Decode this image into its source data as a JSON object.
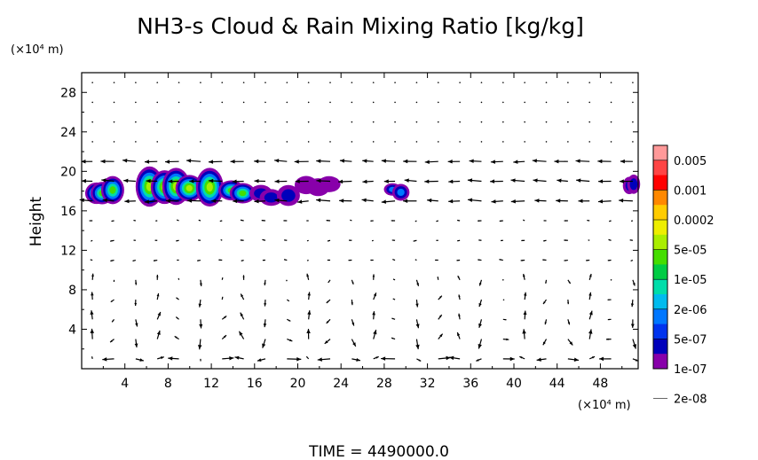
{
  "chart_data": {
    "type": "heatmap",
    "title": "NH3-s Cloud & Rain Mixing Ratio [kg/kg]",
    "ylabel": "Height",
    "xlabel": "",
    "x_unit": "(×10⁴ m)",
    "y_unit": "(×10⁴ m)",
    "xlim": [
      0,
      51.5
    ],
    "ylim": [
      0,
      30
    ],
    "x_ticks": [
      4,
      8,
      12,
      16,
      20,
      24,
      28,
      32,
      36,
      40,
      44,
      48
    ],
    "y_ticks": [
      4,
      8,
      12,
      16,
      20,
      24,
      28
    ],
    "time_label": "TIME  =  4490000.0",
    "legend": {
      "placement": "right",
      "labels": [
        "0.005",
        "0.001",
        "0.0002",
        "5e-05",
        "1e-05",
        "2e-06",
        "5e-07",
        "1e-07",
        "2e-08"
      ],
      "colors": [
        "#ff9999",
        "#ff4444",
        "#ff0000",
        "#ff8800",
        "#ffcc00",
        "#eeee00",
        "#aaee00",
        "#44dd00",
        "#00cc44",
        "#00ddaa",
        "#00bbee",
        "#0077ff",
        "#0033ee",
        "#0000bb",
        "#8800aa"
      ]
    },
    "cloud_regions": [
      {
        "x": [
          0,
          4
        ],
        "y": [
          16.6,
          19.6
        ],
        "max_level": "1e-05"
      },
      {
        "x": [
          5,
          13
        ],
        "y": [
          16.2,
          20
        ],
        "max_level": "5e-05"
      },
      {
        "x": [
          13,
          16
        ],
        "y": [
          16.8,
          19
        ],
        "max_level": "1e-05"
      },
      {
        "x": [
          16,
          20
        ],
        "y": [
          16.6,
          18.6
        ],
        "max_level": "1e-07"
      },
      {
        "x": [
          20,
          24
        ],
        "y": [
          17.5,
          19.6
        ],
        "max_level": "2e-08"
      },
      {
        "x": [
          28,
          30
        ],
        "y": [
          17.2,
          18.8
        ],
        "max_level": "5e-07"
      },
      {
        "x": [
          50,
          51.5
        ],
        "y": [
          17.8,
          19.6
        ],
        "max_level": "1e-07"
      }
    ]
  }
}
